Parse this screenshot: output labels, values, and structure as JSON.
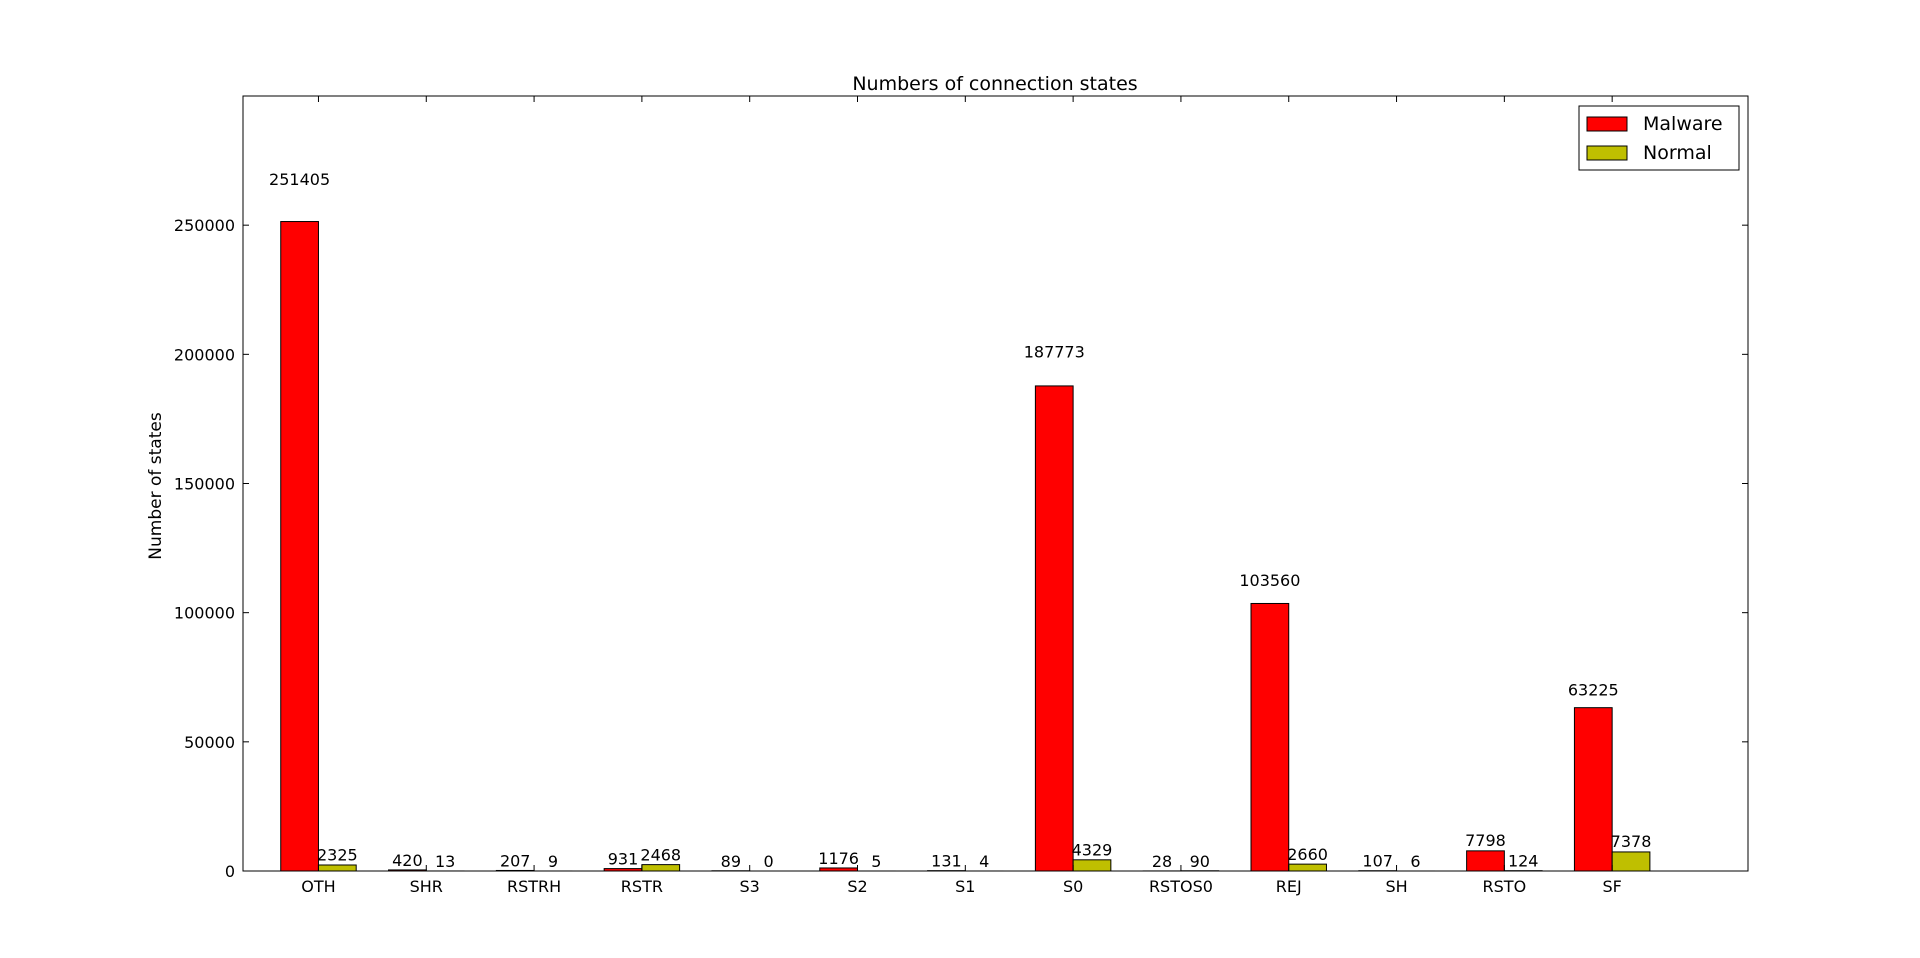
{
  "chart_data": {
    "type": "bar",
    "title": "Numbers of connection states",
    "xlabel": "",
    "ylabel": "Number of states",
    "categories": [
      "OTH",
      "SHR",
      "RSTRH",
      "RSTR",
      "S3",
      "S2",
      "S1",
      "S0",
      "RSTOS0",
      "REJ",
      "SH",
      "RSTO",
      "SF"
    ],
    "series": [
      {
        "name": "Malware",
        "color": "#ff0000",
        "values": [
          251405,
          420,
          207,
          931,
          89,
          1176,
          131,
          187773,
          28,
          103560,
          107,
          7798,
          63225
        ],
        "labels": [
          "251405",
          "420",
          "207",
          "931",
          "89",
          "1176",
          "131",
          "187773",
          "28",
          "103560",
          "107",
          "7798",
          "63225"
        ]
      },
      {
        "name": "Normal",
        "color": "#bfbf00",
        "values": [
          2325,
          13,
          9,
          2468,
          0,
          5,
          4,
          4329,
          90,
          2660,
          6,
          124,
          7378
        ],
        "labels": [
          "2325",
          "13",
          "9",
          "2468",
          "0",
          "5",
          "4",
          "4329",
          "90",
          "2660",
          "6",
          "124",
          "7378"
        ]
      }
    ],
    "ylim": [
      0,
      300000
    ],
    "yticks": [
      0,
      50000,
      100000,
      150000,
      200000,
      250000
    ],
    "ytick_labels": [
      "0",
      "50000",
      "100000",
      "150000",
      "200000",
      "250000"
    ],
    "legend_position": "top-right",
    "grid": false
  }
}
